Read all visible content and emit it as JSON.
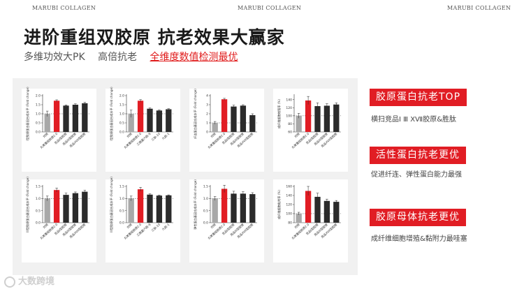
{
  "brand": "MARUBI COLLAGEN",
  "title": "进阶重组双胶原  抗老效果大赢家",
  "subtitle": {
    "items": [
      "多维功效大PK",
      "高倍抗老"
    ],
    "highlight": "全维度数值检测最优"
  },
  "highlights": [
    {
      "label": "胶原蛋白抗老TOP",
      "desc": "横扫竞品Ⅰ Ⅲ ⅩⅦ胶原&胜肽"
    },
    {
      "label": "活性蛋白抗老更优",
      "desc": "促进纤连、弹性蛋白能力最强"
    },
    {
      "label": "胶原母体抗老更优",
      "desc": "成纤维细胞增殖&黏附力最哇塞"
    }
  ],
  "watermark": "大数跨境",
  "colors": {
    "accent": "#e11d24",
    "control": "#a8a8a8",
    "competitor": "#2b2b2b"
  },
  "chart_data": [
    {
      "type": "bar",
      "ylabel": "I型胶原蛋白基因合成水平 (Fold change)",
      "categories": [
        "对照",
        "丸美重组胶原2.0",
        "竞品I型胶原",
        "竞品III型胶原",
        "竞品XVII型胶原"
      ],
      "values": [
        1.0,
        1.72,
        1.45,
        1.5,
        1.58
      ],
      "errors": [
        0.15,
        0.05,
        0.04,
        0.05,
        0.05
      ],
      "ylim": [
        0,
        2
      ],
      "yticks": [
        "0.0",
        "0.5",
        "1.0",
        "1.5",
        "2.0"
      ]
    },
    {
      "type": "bar",
      "ylabel": "I型胶原蛋白基因合成水平 (Fold change)",
      "categories": [
        "对照",
        "丸美重组胶原2.0",
        "乙酰基六肽-8",
        "三肽-10",
        "九肽-1"
      ],
      "values": [
        1.0,
        1.72,
        1.28,
        1.18,
        1.25
      ],
      "errors": [
        0.2,
        0.06,
        0.04,
        0.03,
        0.03
      ],
      "ylim": [
        0,
        2
      ],
      "yticks": [
        "0.0",
        "0.5",
        "1.0",
        "1.5",
        "2.0"
      ]
    },
    {
      "type": "bar",
      "ylabel": "纤连蛋白基因合成水平 (Fold change)",
      "categories": [
        "对照",
        "丸美重组胶原2.0",
        "竞品I型胶原",
        "竞品III型胶原",
        "竞品XVII型胶原"
      ],
      "values": [
        1.0,
        3.6,
        2.8,
        2.9,
        1.85
      ],
      "errors": [
        0.15,
        0.1,
        0.15,
        0.1,
        0.15
      ],
      "ylim": [
        0,
        4
      ],
      "yticks": [
        "0",
        "1",
        "2",
        "3",
        "4"
      ]
    },
    {
      "type": "bar",
      "ylabel": "成纤维细胞增殖率 (%)",
      "categories": [
        "对照",
        "丸美重组胶原2.0",
        "竞品I型胶原",
        "竞品III型胶原",
        "竞品XVII型胶原"
      ],
      "values": [
        100,
        138,
        124,
        125,
        128
      ],
      "errors": [
        6,
        10,
        8,
        5,
        4
      ],
      "ylim": [
        60,
        150
      ],
      "yticks": [
        "60",
        "80",
        "100",
        "120",
        "140"
      ]
    },
    {
      "type": "bar",
      "ylabel": "III型胶原蛋白基因合成水平 (Fold change)",
      "categories": [
        "对照",
        "丸美重组胶原2.0",
        "竞品I型胶原",
        "竞品III型胶原",
        "竞品XVII型胶原"
      ],
      "values": [
        1.0,
        1.35,
        1.15,
        1.22,
        1.28
      ],
      "errors": [
        0.1,
        0.08,
        0.07,
        0.05,
        0.06
      ],
      "ylim": [
        0,
        1.5
      ],
      "yticks": [
        "0.0",
        "0.5",
        "1.0",
        "1.5"
      ]
    },
    {
      "type": "bar",
      "ylabel": "III型胶原蛋白基因合成水平 (Fold change)",
      "categories": [
        "对照",
        "丸美重组胶原2.0",
        "乙酰基六肽-8",
        "三肽-10",
        "九肽-1"
      ],
      "values": [
        1.0,
        1.38,
        1.16,
        1.12,
        1.13
      ],
      "errors": [
        0.1,
        0.08,
        0.03,
        0.02,
        0.02
      ],
      "ylim": [
        0,
        1.5
      ],
      "yticks": [
        "0.0",
        "0.5",
        "1.0",
        "1.5"
      ]
    },
    {
      "type": "bar",
      "ylabel": "弹性蛋白基因合成水平 (Fold change)",
      "categories": [
        "对照",
        "丸美重组胶原2.0",
        "竞品I型胶原",
        "竞品III型胶原",
        "竞品XVII型胶原"
      ],
      "values": [
        1.0,
        1.4,
        1.2,
        1.2,
        1.18
      ],
      "errors": [
        0.08,
        0.15,
        0.1,
        0.08,
        0.06
      ],
      "ylim": [
        0,
        1.5
      ],
      "yticks": [
        "0.0",
        "0.5",
        "1.0",
        "1.5"
      ]
    },
    {
      "type": "bar",
      "ylabel": "成纤维细胞黏附率 (%)",
      "categories": [
        "对照",
        "丸美重组胶原2.0",
        "竞品I型胶原",
        "竞品III型胶原",
        "竞品XVII型胶原"
      ],
      "values": [
        100,
        150,
        137,
        128,
        126
      ],
      "errors": [
        3,
        10,
        8,
        4,
        3
      ],
      "ylim": [
        80,
        160
      ],
      "yticks": [
        "80",
        "100",
        "120",
        "140",
        "160"
      ]
    }
  ]
}
